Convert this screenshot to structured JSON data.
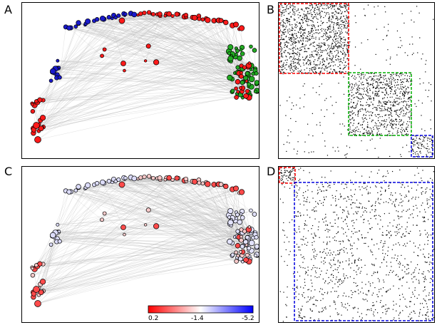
{
  "panels": {
    "A": {
      "letter": "A"
    },
    "B": {
      "letter": "B"
    },
    "C": {
      "letter": "C"
    },
    "D": {
      "letter": "D"
    }
  },
  "colorbar": {
    "tick_labels": [
      "0.2",
      "-1.4",
      "-5.2"
    ],
    "colors": {
      "high": "#ff0000",
      "mid": "#ffffff",
      "low": "#0000ff"
    }
  },
  "colors": {
    "edge": "#b8b8b8",
    "red_group": "#ff1a1a",
    "green_group": "#22aa22",
    "blue_group": "#1a1acc",
    "red_box": "#ff0000",
    "green_box": "#00b000",
    "blue_box": "#0000dd",
    "matrix_dot": "#000000"
  }
}
